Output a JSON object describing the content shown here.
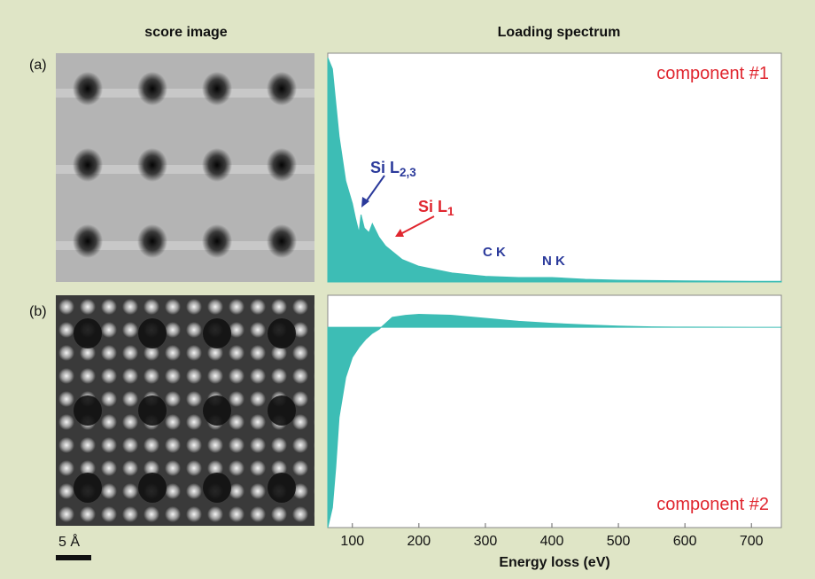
{
  "headers": {
    "left": "score image",
    "right": "Loading spectrum"
  },
  "panels": [
    "(a)",
    "(b)"
  ],
  "scale_bar": "5 Å",
  "chart_data": [
    {
      "type": "area",
      "color": "#3dbdb5",
      "x": [
        63,
        70,
        80,
        90,
        100,
        105,
        110,
        113,
        118,
        125,
        130,
        140,
        150,
        175,
        200,
        250,
        300,
        350,
        400,
        450,
        500,
        600,
        700,
        745
      ],
      "values": [
        1.0,
        0.95,
        0.65,
        0.45,
        0.35,
        0.28,
        0.22,
        0.3,
        0.24,
        0.22,
        0.26,
        0.2,
        0.16,
        0.1,
        0.07,
        0.04,
        0.025,
        0.02,
        0.02,
        0.012,
        0.008,
        0.005,
        0.003,
        0.003
      ],
      "xlim": [
        63,
        745
      ],
      "ylim": [
        0,
        1.02
      ],
      "annotations": [
        {
          "text": "Si L",
          "subscript": "2,3",
          "color": "#2b3a9b"
        },
        {
          "text": "Si L",
          "subscript": "1",
          "color": "#e0262f"
        },
        {
          "text": "C K",
          "color": "#2b3a9b"
        },
        {
          "text": "N K",
          "color": "#2b3a9b"
        },
        {
          "text": "component #1",
          "color": "#e0262f"
        }
      ]
    },
    {
      "type": "area",
      "color": "#3dbdb5",
      "x": [
        63,
        70,
        75,
        80,
        90,
        100,
        110,
        120,
        130,
        140,
        150,
        160,
        180,
        200,
        250,
        300,
        350,
        400,
        450,
        500,
        550,
        600,
        700,
        745
      ],
      "values": [
        -1.0,
        -0.9,
        -0.7,
        -0.45,
        -0.25,
        -0.15,
        -0.1,
        -0.06,
        -0.03,
        -0.01,
        0.02,
        0.05,
        0.06,
        0.065,
        0.06,
        0.045,
        0.03,
        0.02,
        0.012,
        0.006,
        0.002,
        0.001,
        0,
        0
      ],
      "xlim": [
        63,
        745
      ],
      "ylim": [
        -1,
        0.16
      ],
      "xticks": [
        100,
        200,
        300,
        400,
        500,
        600,
        700
      ],
      "xlabel": "Energy loss (eV)",
      "annotations": [
        {
          "text": "component #2",
          "color": "#e0262f"
        }
      ]
    }
  ]
}
